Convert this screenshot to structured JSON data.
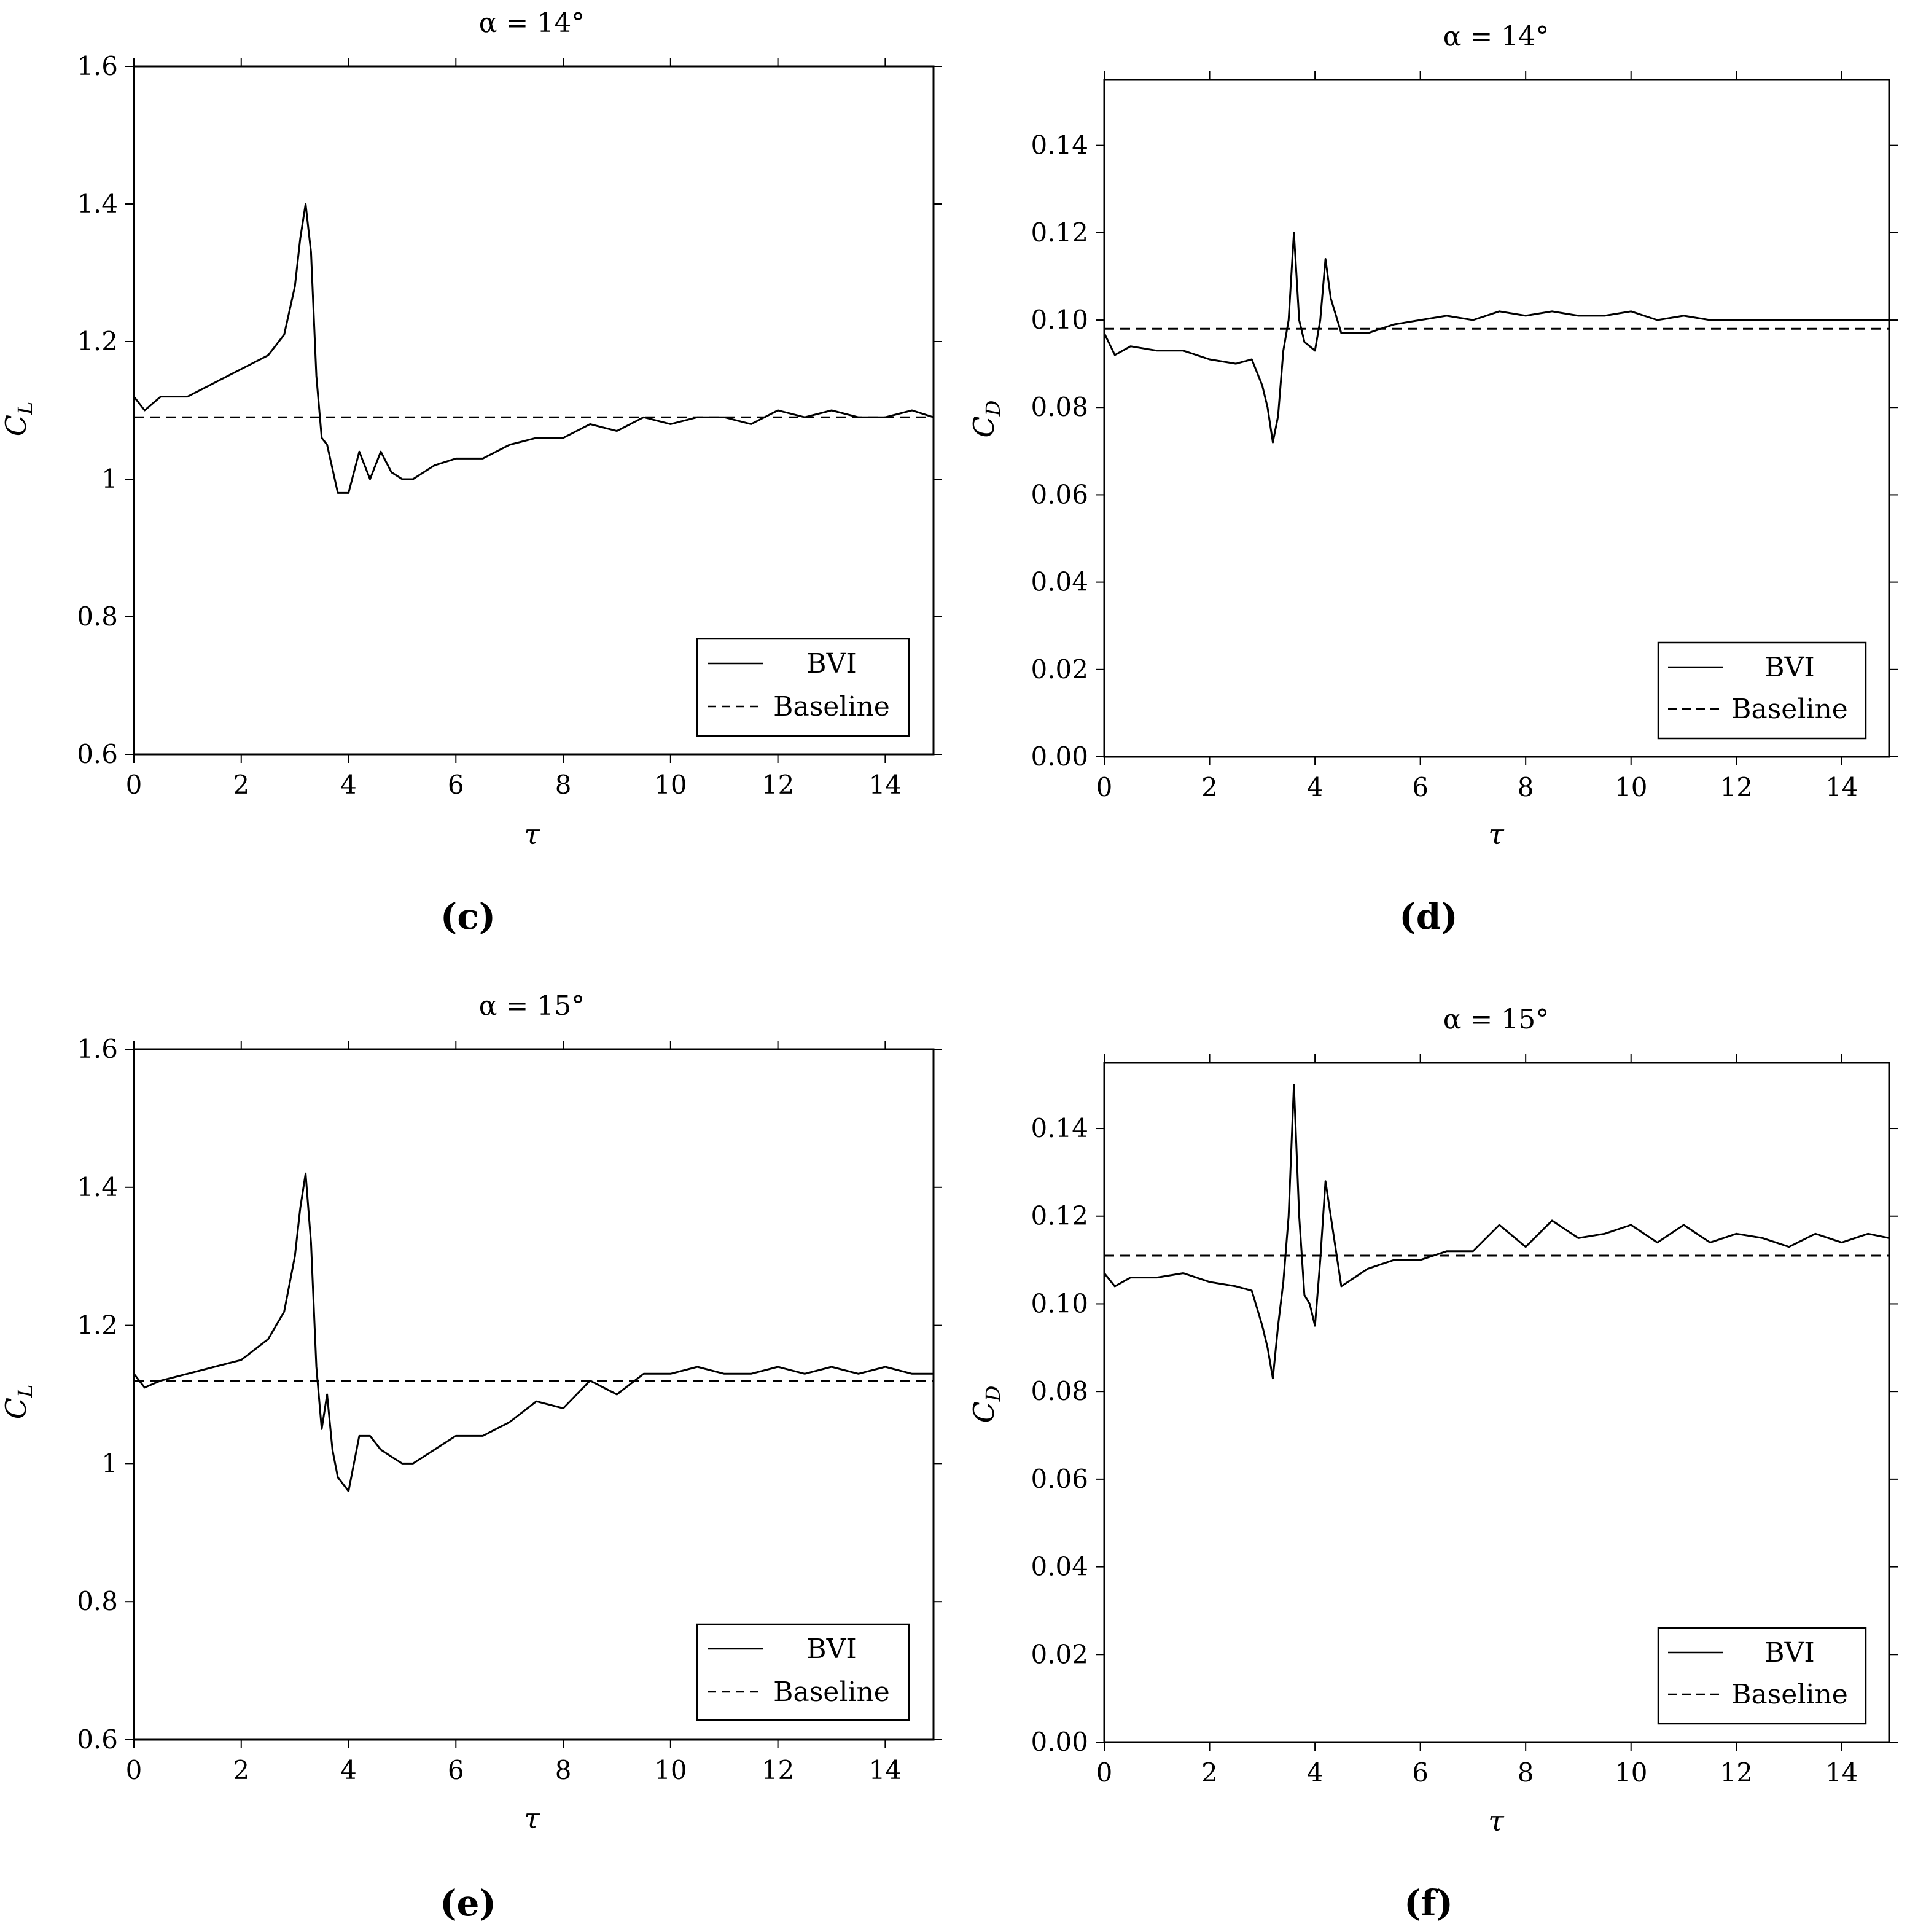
{
  "chart_data": [
    {
      "type": "line",
      "caption": "(c)",
      "title": "α = 14°",
      "xlabel": "τ",
      "ylabel": "C",
      "ylabel_sub": "L",
      "xlim": [
        0,
        14.9
      ],
      "ylim": [
        0.6,
        1.6
      ],
      "xticks": [
        0,
        2,
        4,
        6,
        8,
        10,
        12,
        14
      ],
      "yticks": [
        0.6,
        0.8,
        1,
        1.2,
        1.4,
        1.6
      ],
      "ytick_labels": [
        "0.6",
        "0.8",
        "1",
        "1.2",
        "1.4",
        "1.6"
      ],
      "legend": {
        "position": "bottom-right"
      },
      "series": [
        {
          "name": "BVI",
          "style": "solid",
          "x": [
            0,
            0.2,
            0.5,
            1.0,
            1.5,
            2.0,
            2.5,
            2.8,
            3.0,
            3.1,
            3.2,
            3.3,
            3.4,
            3.5,
            3.6,
            3.8,
            4.0,
            4.2,
            4.4,
            4.6,
            4.8,
            5.0,
            5.2,
            5.6,
            6.0,
            6.5,
            7.0,
            7.5,
            8.0,
            8.5,
            9.0,
            9.5,
            10.0,
            10.5,
            11.0,
            11.5,
            12.0,
            12.5,
            13.0,
            13.5,
            14.0,
            14.5,
            14.9
          ],
          "y": [
            1.12,
            1.1,
            1.12,
            1.12,
            1.14,
            1.16,
            1.18,
            1.21,
            1.28,
            1.35,
            1.4,
            1.33,
            1.15,
            1.06,
            1.05,
            0.98,
            0.98,
            1.04,
            1.0,
            1.04,
            1.01,
            1.0,
            1.0,
            1.02,
            1.03,
            1.03,
            1.05,
            1.06,
            1.06,
            1.08,
            1.07,
            1.09,
            1.08,
            1.09,
            1.09,
            1.08,
            1.1,
            1.09,
            1.1,
            1.09,
            1.09,
            1.1,
            1.09
          ]
        },
        {
          "name": "Baseline",
          "style": "dashed",
          "x": [
            0,
            14.9
          ],
          "y": [
            1.09,
            1.09
          ]
        }
      ]
    },
    {
      "type": "line",
      "caption": "(d)",
      "title": "α = 14°",
      "xlabel": "τ",
      "ylabel": "C",
      "ylabel_sub": "D",
      "xlim": [
        0,
        14.9
      ],
      "ylim": [
        0,
        0.155
      ],
      "xticks": [
        0,
        2,
        4,
        6,
        8,
        10,
        12,
        14
      ],
      "yticks": [
        0,
        0.02,
        0.04,
        0.06,
        0.08,
        0.1,
        0.12,
        0.14
      ],
      "ytick_labels": [
        "0.00",
        "0.02",
        "0.04",
        "0.06",
        "0.08",
        "0.10",
        "0.12",
        "0.14"
      ],
      "legend": {
        "position": "bottom-right"
      },
      "series": [
        {
          "name": "BVI",
          "style": "solid",
          "x": [
            0,
            0.2,
            0.5,
            1.0,
            1.5,
            2.0,
            2.5,
            2.8,
            3.0,
            3.1,
            3.2,
            3.3,
            3.4,
            3.5,
            3.6,
            3.7,
            3.8,
            3.9,
            4.0,
            4.1,
            4.2,
            4.3,
            4.5,
            5.0,
            5.5,
            6.0,
            6.5,
            7.0,
            7.5,
            8.0,
            8.5,
            9.0,
            9.5,
            10.0,
            10.5,
            11.0,
            11.5,
            12.0,
            12.5,
            13.0,
            13.5,
            14.0,
            14.5,
            14.9
          ],
          "y": [
            0.097,
            0.092,
            0.094,
            0.093,
            0.093,
            0.091,
            0.09,
            0.091,
            0.085,
            0.08,
            0.072,
            0.078,
            0.093,
            0.1,
            0.12,
            0.1,
            0.095,
            0.094,
            0.093,
            0.1,
            0.114,
            0.105,
            0.097,
            0.097,
            0.099,
            0.1,
            0.101,
            0.1,
            0.102,
            0.101,
            0.102,
            0.101,
            0.101,
            0.102,
            0.1,
            0.101,
            0.1,
            0.1,
            0.1,
            0.1,
            0.1,
            0.1,
            0.1,
            0.1
          ]
        },
        {
          "name": "Baseline",
          "style": "dashed",
          "x": [
            0,
            14.9
          ],
          "y": [
            0.098,
            0.098
          ]
        }
      ]
    },
    {
      "type": "line",
      "caption": "(e)",
      "title": "α = 15°",
      "xlabel": "τ",
      "ylabel": "C",
      "ylabel_sub": "L",
      "xlim": [
        0,
        14.9
      ],
      "ylim": [
        0.6,
        1.6
      ],
      "xticks": [
        0,
        2,
        4,
        6,
        8,
        10,
        12,
        14
      ],
      "yticks": [
        0.6,
        0.8,
        1,
        1.2,
        1.4,
        1.6
      ],
      "ytick_labels": [
        "0.6",
        "0.8",
        "1",
        "1.2",
        "1.4",
        "1.6"
      ],
      "legend": {
        "position": "bottom-right"
      },
      "series": [
        {
          "name": "BVI",
          "style": "solid",
          "x": [
            0,
            0.2,
            0.5,
            1.0,
            1.5,
            2.0,
            2.5,
            2.8,
            3.0,
            3.1,
            3.2,
            3.3,
            3.4,
            3.5,
            3.6,
            3.7,
            3.8,
            4.0,
            4.2,
            4.4,
            4.6,
            4.8,
            5.0,
            5.2,
            5.6,
            6.0,
            6.5,
            7.0,
            7.5,
            8.0,
            8.5,
            9.0,
            9.5,
            10.0,
            10.5,
            11.0,
            11.5,
            12.0,
            12.5,
            13.0,
            13.5,
            14.0,
            14.5,
            14.9
          ],
          "y": [
            1.13,
            1.11,
            1.12,
            1.13,
            1.14,
            1.15,
            1.18,
            1.22,
            1.3,
            1.37,
            1.42,
            1.32,
            1.14,
            1.05,
            1.1,
            1.02,
            0.98,
            0.96,
            1.04,
            1.04,
            1.02,
            1.01,
            1.0,
            1.0,
            1.02,
            1.04,
            1.04,
            1.06,
            1.09,
            1.08,
            1.12,
            1.1,
            1.13,
            1.13,
            1.14,
            1.13,
            1.13,
            1.14,
            1.13,
            1.14,
            1.13,
            1.14,
            1.13,
            1.13
          ]
        },
        {
          "name": "Baseline",
          "style": "dashed",
          "x": [
            0,
            14.9
          ],
          "y": [
            1.12,
            1.12
          ]
        }
      ]
    },
    {
      "type": "line",
      "caption": "(f)",
      "title": "α = 15°",
      "xlabel": "τ",
      "ylabel": "C",
      "ylabel_sub": "D",
      "xlim": [
        0,
        14.9
      ],
      "ylim": [
        0,
        0.155
      ],
      "xticks": [
        0,
        2,
        4,
        6,
        8,
        10,
        12,
        14
      ],
      "yticks": [
        0,
        0.02,
        0.04,
        0.06,
        0.08,
        0.1,
        0.12,
        0.14
      ],
      "ytick_labels": [
        "0.00",
        "0.02",
        "0.04",
        "0.06",
        "0.08",
        "0.10",
        "0.12",
        "0.14"
      ],
      "legend": {
        "position": "bottom-right"
      },
      "series": [
        {
          "name": "BVI",
          "style": "solid",
          "x": [
            0,
            0.2,
            0.5,
            1.0,
            1.5,
            2.0,
            2.5,
            2.8,
            3.0,
            3.1,
            3.2,
            3.3,
            3.4,
            3.5,
            3.6,
            3.7,
            3.8,
            3.9,
            4.0,
            4.1,
            4.2,
            4.3,
            4.5,
            5.0,
            5.5,
            6.0,
            6.5,
            7.0,
            7.5,
            8.0,
            8.5,
            9.0,
            9.5,
            10.0,
            10.5,
            11.0,
            11.5,
            12.0,
            12.5,
            13.0,
            13.5,
            14.0,
            14.5,
            14.9
          ],
          "y": [
            0.107,
            0.104,
            0.106,
            0.106,
            0.107,
            0.105,
            0.104,
            0.103,
            0.095,
            0.09,
            0.083,
            0.095,
            0.105,
            0.12,
            0.15,
            0.12,
            0.102,
            0.1,
            0.095,
            0.11,
            0.128,
            0.12,
            0.104,
            0.108,
            0.11,
            0.11,
            0.112,
            0.112,
            0.118,
            0.113,
            0.119,
            0.115,
            0.116,
            0.118,
            0.114,
            0.118,
            0.114,
            0.116,
            0.115,
            0.113,
            0.116,
            0.114,
            0.116,
            0.115
          ]
        },
        {
          "name": "Baseline",
          "style": "dashed",
          "x": [
            0,
            14.9
          ],
          "y": [
            0.111,
            0.111
          ]
        }
      ]
    }
  ]
}
